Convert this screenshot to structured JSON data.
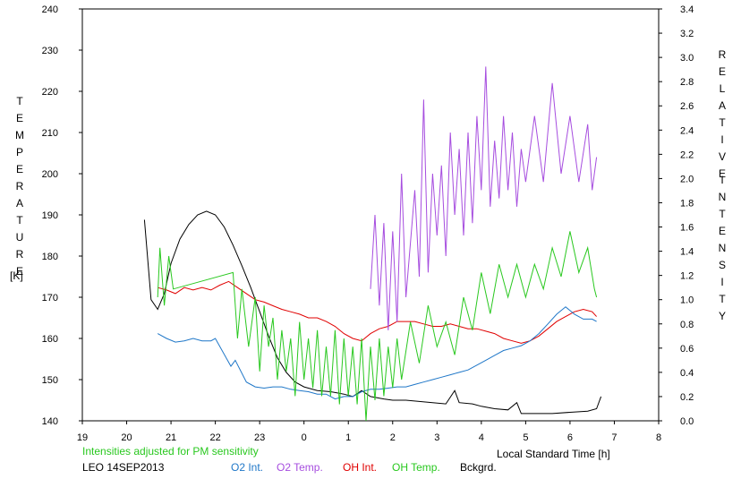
{
  "chart_data": {
    "type": "line",
    "xlabel": "Local Standard Time [h]",
    "x_ticks": [
      "19",
      "20",
      "21",
      "22",
      "23",
      "0",
      "1",
      "2",
      "3",
      "4",
      "5",
      "6",
      "7",
      "8"
    ],
    "x_range": [
      19,
      32
    ],
    "y_left": {
      "label_chars": [
        "T",
        "E",
        "M",
        "P",
        "E",
        "R",
        "A",
        "T",
        "U",
        "R",
        "E"
      ],
      "unit": "[K]",
      "range": [
        140,
        240
      ],
      "ticks": [
        "140",
        "150",
        "160",
        "170",
        "180",
        "190",
        "200",
        "210",
        "220",
        "230",
        "240"
      ]
    },
    "y_right": {
      "label_word1": [
        "R",
        "E",
        "L",
        "A",
        "T",
        "I",
        "V",
        "E"
      ],
      "label_word2": [
        "I",
        "N",
        "T",
        "E",
        "N",
        "S",
        "I",
        "T",
        "Y"
      ],
      "range": [
        0.0,
        3.4
      ],
      "ticks": [
        "0.0",
        "0.2",
        "0.4",
        "0.6",
        "0.8",
        "1.0",
        "1.2",
        "1.4",
        "1.6",
        "1.8",
        "2.0",
        "2.2",
        "2.4",
        "2.6",
        "2.8",
        "3.0",
        "3.2",
        "3.4"
      ]
    },
    "note": "Intensities adjusted for PM sensitivity",
    "station": "LEO 14SEP2013",
    "legend": [
      {
        "name": "O2 Int.",
        "color": "#1f77c8"
      },
      {
        "name": "O2 Temp.",
        "color": "#a64ddf"
      },
      {
        "name": "OH Int.",
        "color": "#e00000"
      },
      {
        "name": "OH Temp.",
        "color": "#29c81f"
      },
      {
        "name": "Bckgrd.",
        "color": "#000000"
      }
    ],
    "series": [
      {
        "name": "Bckgrd.",
        "axis": "right",
        "color": "#000000",
        "points": [
          [
            20.4,
            1.66
          ],
          [
            20.55,
            1.0
          ],
          [
            20.7,
            0.92
          ],
          [
            20.85,
            1.05
          ],
          [
            21.0,
            1.3
          ],
          [
            21.2,
            1.5
          ],
          [
            21.4,
            1.62
          ],
          [
            21.6,
            1.7
          ],
          [
            21.8,
            1.73
          ],
          [
            22.0,
            1.7
          ],
          [
            22.2,
            1.6
          ],
          [
            22.4,
            1.45
          ],
          [
            22.6,
            1.28
          ],
          [
            22.8,
            1.1
          ],
          [
            23.0,
            0.9
          ],
          [
            23.2,
            0.7
          ],
          [
            23.4,
            0.52
          ],
          [
            23.6,
            0.4
          ],
          [
            23.8,
            0.32
          ],
          [
            24.0,
            0.28
          ],
          [
            24.3,
            0.25
          ],
          [
            24.6,
            0.24
          ],
          [
            24.9,
            0.22
          ],
          [
            25.1,
            0.2
          ],
          [
            25.3,
            0.25
          ],
          [
            25.5,
            0.2
          ],
          [
            25.8,
            0.18
          ],
          [
            26.0,
            0.17
          ],
          [
            26.3,
            0.17
          ],
          [
            26.6,
            0.16
          ],
          [
            26.9,
            0.15
          ],
          [
            27.2,
            0.14
          ],
          [
            27.4,
            0.25
          ],
          [
            27.5,
            0.15
          ],
          [
            27.8,
            0.14
          ],
          [
            28.0,
            0.12
          ],
          [
            28.3,
            0.1
          ],
          [
            28.6,
            0.09
          ],
          [
            28.8,
            0.15
          ],
          [
            28.9,
            0.06
          ],
          [
            29.2,
            0.06
          ],
          [
            29.6,
            0.06
          ],
          [
            30.0,
            0.07
          ],
          [
            30.4,
            0.08
          ],
          [
            30.6,
            0.1
          ],
          [
            30.7,
            0.2
          ]
        ]
      },
      {
        "name": "OH Int.",
        "axis": "right",
        "color": "#e00000",
        "points": [
          [
            20.7,
            1.1
          ],
          [
            20.9,
            1.08
          ],
          [
            21.1,
            1.05
          ],
          [
            21.3,
            1.1
          ],
          [
            21.5,
            1.08
          ],
          [
            21.7,
            1.1
          ],
          [
            21.9,
            1.08
          ],
          [
            22.1,
            1.12
          ],
          [
            22.3,
            1.15
          ],
          [
            22.5,
            1.1
          ],
          [
            22.7,
            1.05
          ],
          [
            22.9,
            1.0
          ],
          [
            23.1,
            0.98
          ],
          [
            23.3,
            0.95
          ],
          [
            23.5,
            0.92
          ],
          [
            23.7,
            0.9
          ],
          [
            23.9,
            0.88
          ],
          [
            24.1,
            0.85
          ],
          [
            24.3,
            0.85
          ],
          [
            24.5,
            0.82
          ],
          [
            24.7,
            0.78
          ],
          [
            24.9,
            0.72
          ],
          [
            25.1,
            0.68
          ],
          [
            25.3,
            0.66
          ],
          [
            25.5,
            0.72
          ],
          [
            25.7,
            0.76
          ],
          [
            25.9,
            0.78
          ],
          [
            26.1,
            0.82
          ],
          [
            26.3,
            0.82
          ],
          [
            26.5,
            0.82
          ],
          [
            26.7,
            0.8
          ],
          [
            26.9,
            0.78
          ],
          [
            27.1,
            0.78
          ],
          [
            27.3,
            0.8
          ],
          [
            27.5,
            0.78
          ],
          [
            27.7,
            0.76
          ],
          [
            27.9,
            0.76
          ],
          [
            28.1,
            0.74
          ],
          [
            28.3,
            0.72
          ],
          [
            28.5,
            0.68
          ],
          [
            28.7,
            0.66
          ],
          [
            28.9,
            0.64
          ],
          [
            29.1,
            0.66
          ],
          [
            29.3,
            0.7
          ],
          [
            29.5,
            0.76
          ],
          [
            29.7,
            0.82
          ],
          [
            29.9,
            0.86
          ],
          [
            30.1,
            0.9
          ],
          [
            30.3,
            0.92
          ],
          [
            30.5,
            0.9
          ],
          [
            30.6,
            0.86
          ]
        ]
      },
      {
        "name": "O2 Int.",
        "axis": "right",
        "color": "#1f77c8",
        "points": [
          [
            20.7,
            0.72
          ],
          [
            20.9,
            0.68
          ],
          [
            21.1,
            0.65
          ],
          [
            21.3,
            0.66
          ],
          [
            21.5,
            0.68
          ],
          [
            21.7,
            0.66
          ],
          [
            21.9,
            0.66
          ],
          [
            22.0,
            0.68
          ],
          [
            22.35,
            0.45
          ],
          [
            22.45,
            0.5
          ],
          [
            22.7,
            0.32
          ],
          [
            22.9,
            0.28
          ],
          [
            23.1,
            0.27
          ],
          [
            23.3,
            0.28
          ],
          [
            23.5,
            0.28
          ],
          [
            23.7,
            0.26
          ],
          [
            23.9,
            0.25
          ],
          [
            24.1,
            0.24
          ],
          [
            24.3,
            0.22
          ],
          [
            24.5,
            0.22
          ],
          [
            24.7,
            0.18
          ],
          [
            24.9,
            0.2
          ],
          [
            25.1,
            0.2
          ],
          [
            25.3,
            0.24
          ],
          [
            25.5,
            0.26
          ],
          [
            25.7,
            0.26
          ],
          [
            25.9,
            0.27
          ],
          [
            26.1,
            0.28
          ],
          [
            26.3,
            0.28
          ],
          [
            26.5,
            0.3
          ],
          [
            26.7,
            0.32
          ],
          [
            26.9,
            0.34
          ],
          [
            27.1,
            0.36
          ],
          [
            27.3,
            0.38
          ],
          [
            27.5,
            0.4
          ],
          [
            27.7,
            0.42
          ],
          [
            27.9,
            0.46
          ],
          [
            28.1,
            0.5
          ],
          [
            28.3,
            0.54
          ],
          [
            28.5,
            0.58
          ],
          [
            28.7,
            0.6
          ],
          [
            28.9,
            0.62
          ],
          [
            29.1,
            0.66
          ],
          [
            29.3,
            0.72
          ],
          [
            29.5,
            0.8
          ],
          [
            29.7,
            0.88
          ],
          [
            29.9,
            0.94
          ],
          [
            30.1,
            0.88
          ],
          [
            30.3,
            0.84
          ],
          [
            30.5,
            0.84
          ],
          [
            30.6,
            0.82
          ]
        ]
      },
      {
        "name": "OH Temp.",
        "axis": "left",
        "color": "#29c81f",
        "points": [
          [
            20.7,
            170
          ],
          [
            20.75,
            182
          ],
          [
            20.85,
            168
          ],
          [
            20.95,
            180
          ],
          [
            21.05,
            172
          ],
          [
            22.4,
            176
          ],
          [
            22.5,
            160
          ],
          [
            22.6,
            172
          ],
          [
            22.75,
            158
          ],
          [
            22.9,
            170
          ],
          [
            23.0,
            152
          ],
          [
            23.1,
            168
          ],
          [
            23.2,
            158
          ],
          [
            23.3,
            165
          ],
          [
            23.4,
            150
          ],
          [
            23.5,
            162
          ],
          [
            23.6,
            152
          ],
          [
            23.7,
            160
          ],
          [
            23.8,
            146
          ],
          [
            23.9,
            164
          ],
          [
            24.0,
            150
          ],
          [
            24.1,
            160
          ],
          [
            24.2,
            148
          ],
          [
            24.3,
            162
          ],
          [
            24.4,
            146
          ],
          [
            24.5,
            158
          ],
          [
            24.6,
            146
          ],
          [
            24.7,
            162
          ],
          [
            24.8,
            144
          ],
          [
            24.9,
            160
          ],
          [
            25.0,
            146
          ],
          [
            25.1,
            158
          ],
          [
            25.2,
            144
          ],
          [
            25.3,
            160
          ],
          [
            25.4,
            140
          ],
          [
            25.5,
            158
          ],
          [
            25.6,
            145
          ],
          [
            25.7,
            160
          ],
          [
            25.8,
            146
          ],
          [
            25.9,
            158
          ],
          [
            26.0,
            148
          ],
          [
            26.1,
            160
          ],
          [
            26.2,
            150
          ],
          [
            26.4,
            164
          ],
          [
            26.6,
            154
          ],
          [
            26.8,
            168
          ],
          [
            27.0,
            158
          ],
          [
            27.2,
            164
          ],
          [
            27.4,
            156
          ],
          [
            27.6,
            170
          ],
          [
            27.8,
            162
          ],
          [
            28.0,
            176
          ],
          [
            28.2,
            166
          ],
          [
            28.4,
            178
          ],
          [
            28.6,
            170
          ],
          [
            28.8,
            178
          ],
          [
            29.0,
            170
          ],
          [
            29.2,
            178
          ],
          [
            29.4,
            172
          ],
          [
            29.6,
            182
          ],
          [
            29.8,
            175
          ],
          [
            30.0,
            186
          ],
          [
            30.2,
            176
          ],
          [
            30.4,
            182
          ],
          [
            30.55,
            172
          ],
          [
            30.6,
            170
          ]
        ]
      },
      {
        "name": "O2 Temp.",
        "axis": "left",
        "color": "#a64ddf",
        "points": [
          [
            25.5,
            172
          ],
          [
            25.6,
            190
          ],
          [
            25.7,
            168
          ],
          [
            25.8,
            188
          ],
          [
            25.9,
            162
          ],
          [
            26.0,
            186
          ],
          [
            26.1,
            164
          ],
          [
            26.2,
            200
          ],
          [
            26.3,
            170
          ],
          [
            26.5,
            196
          ],
          [
            26.6,
            175
          ],
          [
            26.7,
            218
          ],
          [
            26.8,
            176
          ],
          [
            26.9,
            200
          ],
          [
            27.0,
            185
          ],
          [
            27.1,
            202
          ],
          [
            27.2,
            180
          ],
          [
            27.3,
            210
          ],
          [
            27.4,
            190
          ],
          [
            27.5,
            206
          ],
          [
            27.6,
            185
          ],
          [
            27.7,
            210
          ],
          [
            27.8,
            188
          ],
          [
            27.9,
            214
          ],
          [
            28.0,
            196
          ],
          [
            28.1,
            226
          ],
          [
            28.2,
            192
          ],
          [
            28.3,
            208
          ],
          [
            28.4,
            194
          ],
          [
            28.5,
            214
          ],
          [
            28.6,
            196
          ],
          [
            28.7,
            210
          ],
          [
            28.8,
            192
          ],
          [
            28.9,
            206
          ],
          [
            29.0,
            198
          ],
          [
            29.2,
            214
          ],
          [
            29.4,
            198
          ],
          [
            29.6,
            222
          ],
          [
            29.8,
            200
          ],
          [
            30.0,
            214
          ],
          [
            30.2,
            198
          ],
          [
            30.4,
            212
          ],
          [
            30.5,
            196
          ],
          [
            30.6,
            204
          ]
        ]
      }
    ]
  }
}
